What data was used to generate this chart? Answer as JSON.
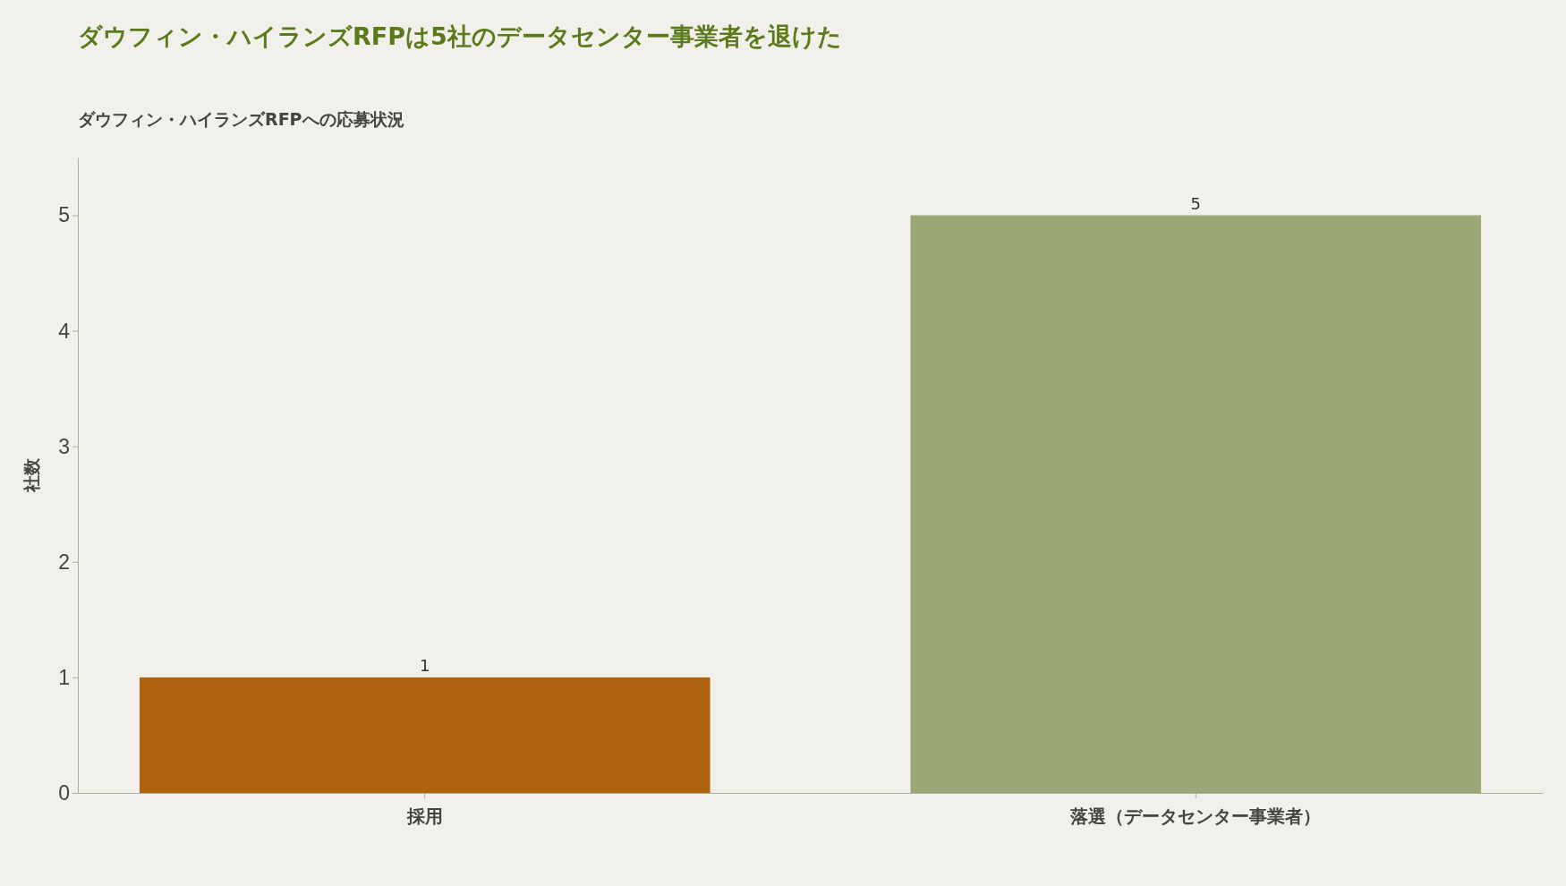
{
  "chart_data": {
    "type": "bar",
    "title": "ダウフィン・ハイランズRFPは5社のデータセンター事業者を退けた",
    "subtitle": "ダウフィン・ハイランズRFPへの応募状況",
    "ylabel": "社数",
    "categories": [
      "採用",
      "落選（データセンター事業者）"
    ],
    "values": [
      1,
      5
    ],
    "colors": [
      "#b0610f",
      "#9ba876"
    ],
    "ylim": [
      0,
      5.5
    ],
    "yticks": [
      0,
      1,
      2,
      3,
      4,
      5
    ],
    "grid": false,
    "data_labels": true
  }
}
